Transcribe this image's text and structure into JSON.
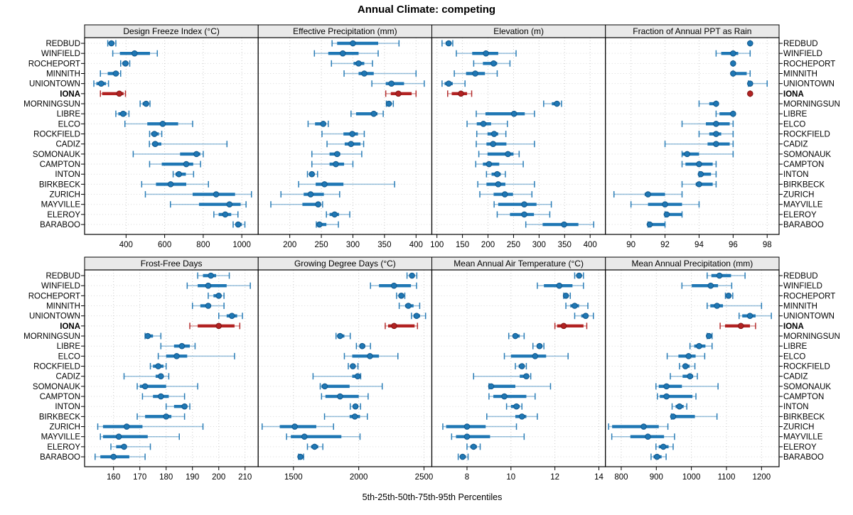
{
  "title": "Annual Climate: competing",
  "caption": "5th-25th-50th-75th-95th Percentiles",
  "colors": {
    "series": "#1f77b4",
    "series_edge": "#10568a",
    "highlight": "#b22222",
    "highlight_edge": "#7f1616",
    "strip_bg": "#e9e9e9",
    "panel_border": "#000000",
    "grid": "#c9c9c9",
    "row_line": "#dadada"
  },
  "chart_data": {
    "type": "dotplot",
    "percentiles": [
      5,
      25,
      50,
      75,
      95
    ],
    "highlight_station": "IONA",
    "stations": [
      "REDBUD",
      "WINFIELD",
      "ROCHEPORT",
      "MINNITH",
      "UNIONTOWN",
      "IONA",
      "MORNINGSUN",
      "LIBRE",
      "ELCO",
      "ROCKFIELD",
      "CADIZ",
      "SOMONAUK",
      "CAMPTON",
      "INTON",
      "BIRKBECK",
      "ZURICH",
      "MAYVILLE",
      "ELEROY",
      "BARABOO"
    ],
    "panels": [
      {
        "title": "Design Freeze Index (°C)",
        "row": 0,
        "col": 0,
        "xlim": [
          185,
          1085
        ],
        "ticks": [
          400,
          600,
          800,
          1000
        ],
        "values": [
          [
            305,
            312,
            324,
            339,
            347
          ],
          [
            331,
            368,
            444,
            524,
            562
          ],
          [
            372,
            381,
            397,
            412,
            419
          ],
          [
            267,
            305,
            347,
            362,
            372
          ],
          [
            233,
            246,
            271,
            296,
            309
          ],
          [
            267,
            276,
            365,
            387,
            397
          ],
          [
            473,
            486,
            504,
            516,
            524
          ],
          [
            347,
            360,
            385,
            403,
            415
          ],
          [
            394,
            510,
            590,
            670,
            745
          ],
          [
            522,
            530,
            547,
            570,
            585
          ],
          [
            521,
            535,
            551,
            583,
            923
          ],
          [
            437,
            680,
            765,
            785,
            800
          ],
          [
            522,
            585,
            712,
            748,
            786
          ],
          [
            644,
            656,
            674,
            710,
            750
          ],
          [
            481,
            555,
            631,
            712,
            827
          ],
          [
            500,
            745,
            867,
            965,
            1050
          ],
          [
            630,
            778,
            936,
            994,
            1022
          ],
          [
            855,
            880,
            914,
            945,
            980
          ],
          [
            955,
            968,
            981,
            1000,
            1016
          ]
        ]
      },
      {
        "title": "Effective Precipitation (mm)",
        "row": 0,
        "col": 1,
        "xlim": [
          150,
          425
        ],
        "ticks": [
          200,
          250,
          300,
          350,
          400
        ],
        "values": [
          [
            267,
            275,
            300,
            340,
            373
          ],
          [
            239,
            261,
            284,
            309,
            340
          ],
          [
            266,
            301,
            309,
            318,
            331
          ],
          [
            286,
            309,
            318,
            333,
            400
          ],
          [
            330,
            352,
            361,
            381,
            413
          ],
          [
            352,
            360,
            372,
            393,
            400
          ],
          [
            353,
            355,
            357,
            361,
            364
          ],
          [
            297,
            305,
            333,
            339,
            348
          ],
          [
            229,
            240,
            253,
            257,
            261
          ],
          [
            251,
            285,
            299,
            308,
            318
          ],
          [
            259,
            287,
            297,
            312,
            317
          ],
          [
            235,
            263,
            275,
            280,
            314
          ],
          [
            235,
            263,
            273,
            286,
            300
          ],
          [
            228,
            231,
            235,
            239,
            244
          ],
          [
            214,
            241,
            255,
            285,
            366
          ],
          [
            186,
            222,
            233,
            254,
            279
          ],
          [
            170,
            220,
            245,
            249,
            252
          ],
          [
            258,
            263,
            271,
            278,
            295
          ],
          [
            242,
            244,
            247,
            258,
            277
          ]
        ]
      },
      {
        "title": "Elevation (m)",
        "row": 0,
        "col": 2,
        "xlim": [
          90,
          430
        ],
        "ticks": [
          100,
          150,
          200,
          250,
          300,
          350,
          400
        ],
        "values": [
          [
            110,
            117,
            123,
            128,
            131
          ],
          [
            138,
            169,
            196,
            220,
            255
          ],
          [
            172,
            190,
            211,
            218,
            243
          ],
          [
            134,
            157,
            175,
            194,
            218
          ],
          [
            110,
            115,
            123,
            131,
            155
          ],
          [
            121,
            129,
            147,
            159,
            168
          ],
          [
            309,
            325,
            335,
            340,
            344
          ],
          [
            177,
            195,
            251,
            272,
            291
          ],
          [
            159,
            178,
            191,
            206,
            238
          ],
          [
            178,
            199,
            212,
            220,
            235
          ],
          [
            177,
            197,
            210,
            236,
            291
          ],
          [
            182,
            199,
            239,
            250,
            261
          ],
          [
            176,
            190,
            202,
            222,
            269
          ],
          [
            197,
            207,
            218,
            225,
            234
          ],
          [
            180,
            197,
            220,
            234,
            291
          ],
          [
            184,
            211,
            233,
            249,
            286
          ],
          [
            212,
            220,
            271,
            295,
            324
          ],
          [
            218,
            243,
            271,
            290,
            321
          ],
          [
            274,
            307,
            349,
            377,
            407
          ]
        ]
      },
      {
        "title": "Fraction of Annual PPT as Rain",
        "row": 0,
        "col": 3,
        "xlim": [
          88.5,
          98.7
        ],
        "ticks": [
          90,
          92,
          94,
          96,
          98
        ],
        "values": [
          [
            97,
            97,
            97,
            97,
            97
          ],
          [
            95,
            95.3,
            96,
            96.3,
            97
          ],
          [
            96,
            96,
            96,
            96,
            96
          ],
          [
            96,
            96,
            96,
            96.8,
            97
          ],
          [
            96.9,
            97,
            97,
            97,
            98
          ],
          [
            97,
            97,
            97,
            97,
            97
          ],
          [
            94,
            94.6,
            95,
            95,
            95
          ],
          [
            95,
            95.2,
            96,
            96,
            96
          ],
          [
            93,
            94.4,
            95,
            95.8,
            96
          ],
          [
            94,
            94.6,
            95,
            95.3,
            96
          ],
          [
            92,
            94.5,
            95,
            95.8,
            96
          ],
          [
            93,
            93,
            93.3,
            94,
            96
          ],
          [
            93,
            93.2,
            94,
            94.8,
            95
          ],
          [
            94,
            94,
            94.1,
            94.7,
            95
          ],
          [
            93,
            93.8,
            94,
            94.8,
            95
          ],
          [
            89,
            90.8,
            91,
            92,
            93
          ],
          [
            90,
            91,
            92,
            93,
            94
          ],
          [
            92,
            92,
            92.1,
            93,
            93
          ],
          [
            91,
            91,
            91.1,
            92,
            92
          ]
        ]
      },
      {
        "title": "Frost-Free Days",
        "row": 1,
        "col": 0,
        "xlim": [
          149,
          215
        ],
        "ticks": [
          160,
          170,
          180,
          190,
          200,
          210
        ],
        "values": [
          [
            192,
            194,
            197,
            199,
            204
          ],
          [
            188,
            192,
            196,
            203,
            212
          ],
          [
            196,
            198,
            200,
            201,
            202
          ],
          [
            190,
            193,
            196,
            197,
            202
          ],
          [
            200,
            203,
            205,
            207,
            209
          ],
          [
            189,
            192,
            200,
            206,
            208
          ],
          [
            172,
            172.5,
            173,
            175,
            178
          ],
          [
            178,
            183,
            186,
            189,
            191
          ],
          [
            177,
            180,
            184,
            188,
            206
          ],
          [
            174,
            175,
            177,
            179,
            180
          ],
          [
            164,
            176,
            178,
            179,
            181
          ],
          [
            169,
            170,
            172,
            180,
            192
          ],
          [
            171,
            175,
            178,
            181,
            187
          ],
          [
            180,
            183,
            187,
            188,
            189
          ],
          [
            169,
            172,
            180,
            182,
            187
          ],
          [
            154,
            156,
            165,
            171,
            194
          ],
          [
            155,
            156,
            162,
            173,
            185
          ],
          [
            159,
            161,
            164,
            165,
            174
          ],
          [
            153,
            155,
            160,
            166,
            172
          ]
        ]
      },
      {
        "title": "Growing Degree Days (°C)",
        "row": 1,
        "col": 1,
        "xlim": [
          1230,
          2560
        ],
        "ticks": [
          1500,
          2000,
          2500
        ],
        "values": [
          [
            2370,
            2390,
            2408,
            2425,
            2445
          ],
          [
            2090,
            2155,
            2270,
            2400,
            2443
          ],
          [
            2290,
            2310,
            2326,
            2340,
            2353
          ],
          [
            2310,
            2355,
            2380,
            2420,
            2467
          ],
          [
            2404,
            2420,
            2443,
            2470,
            2512
          ],
          [
            2203,
            2225,
            2271,
            2428,
            2450
          ],
          [
            1826,
            1840,
            1857,
            1890,
            1935
          ],
          [
            1982,
            2005,
            2027,
            2050,
            2090
          ],
          [
            1890,
            1950,
            2086,
            2155,
            2300
          ],
          [
            1920,
            1935,
            1955,
            1975,
            1994
          ],
          [
            1650,
            1950,
            1992,
            2005,
            2015
          ],
          [
            1705,
            1715,
            1740,
            1930,
            2180
          ],
          [
            1715,
            1745,
            1857,
            2000,
            2072
          ],
          [
            1935,
            1955,
            1975,
            1995,
            2014
          ],
          [
            1738,
            1930,
            1970,
            2010,
            2066
          ],
          [
            1260,
            1395,
            1510,
            1675,
            1807
          ],
          [
            1447,
            1480,
            1584,
            1867,
            2010
          ],
          [
            1607,
            1635,
            1662,
            1690,
            1725
          ],
          [
            1539,
            1546,
            1553,
            1565,
            1578
          ]
        ]
      },
      {
        "title": "Mean Annual Air Temperature (°C)",
        "row": 1,
        "col": 2,
        "xlim": [
          6.4,
          14.3
        ],
        "ticks": [
          8,
          10,
          12,
          14
        ],
        "values": [
          [
            12.9,
            13.0,
            13.1,
            13.2,
            13.3
          ],
          [
            11.2,
            11.5,
            12.2,
            12.8,
            13.3
          ],
          [
            12.4,
            12.45,
            12.5,
            12.6,
            12.7
          ],
          [
            12.5,
            12.7,
            12.9,
            13.1,
            13.5
          ],
          [
            12.9,
            13.2,
            13.4,
            13.5,
            13.75
          ],
          [
            12.0,
            12.1,
            12.4,
            13.3,
            13.45
          ],
          [
            9.9,
            10.1,
            10.2,
            10.4,
            10.6
          ],
          [
            11.0,
            11.2,
            11.3,
            11.4,
            11.5
          ],
          [
            9.7,
            10.0,
            11.1,
            11.6,
            12.6
          ],
          [
            10.2,
            10.35,
            10.5,
            10.6,
            10.7
          ],
          [
            8.3,
            10.4,
            10.7,
            10.8,
            10.9
          ],
          [
            9.0,
            9.05,
            9.1,
            10.2,
            11.8
          ],
          [
            9.0,
            9.2,
            9.7,
            10.7,
            11.1
          ],
          [
            9.8,
            10.0,
            10.25,
            10.4,
            10.5
          ],
          [
            8.9,
            10.2,
            10.5,
            10.7,
            11.2
          ],
          [
            6.9,
            7.05,
            8.0,
            8.85,
            10.25
          ],
          [
            7.3,
            7.5,
            8.0,
            9.05,
            10.6
          ],
          [
            8.0,
            8.15,
            8.3,
            8.45,
            8.6
          ],
          [
            7.6,
            7.7,
            7.8,
            7.95,
            8.05
          ]
        ]
      },
      {
        "title": "Mean Annual Precipitation (mm)",
        "row": 1,
        "col": 3,
        "xlim": [
          755,
          1250
        ],
        "ticks": [
          800,
          900,
          1000,
          1100,
          1200
        ],
        "values": [
          [
            1045,
            1057,
            1080,
            1113,
            1153
          ],
          [
            973,
            1001,
            1055,
            1076,
            1115
          ],
          [
            1097,
            1100,
            1106,
            1112,
            1118
          ],
          [
            1045,
            1054,
            1073,
            1090,
            1200
          ],
          [
            1136,
            1145,
            1167,
            1183,
            1228
          ],
          [
            1082,
            1096,
            1141,
            1167,
            1183
          ],
          [
            1045,
            1047,
            1050,
            1055,
            1059
          ],
          [
            996,
            1008,
            1022,
            1040,
            1059
          ],
          [
            931,
            963,
            992,
            1012,
            1038
          ],
          [
            966,
            975,
            983,
            995,
            1010
          ],
          [
            940,
            975,
            996,
            1005,
            1017
          ],
          [
            899,
            907,
            929,
            973,
            1076
          ],
          [
            903,
            910,
            929,
            1003,
            1013
          ],
          [
            945,
            955,
            966,
            978,
            987
          ],
          [
            943,
            945,
            948,
            1010,
            1073
          ],
          [
            764,
            774,
            864,
            907,
            933
          ],
          [
            773,
            826,
            876,
            922,
            952
          ],
          [
            899,
            907,
            920,
            935,
            948
          ],
          [
            885,
            892,
            902,
            915,
            928
          ]
        ]
      }
    ]
  }
}
